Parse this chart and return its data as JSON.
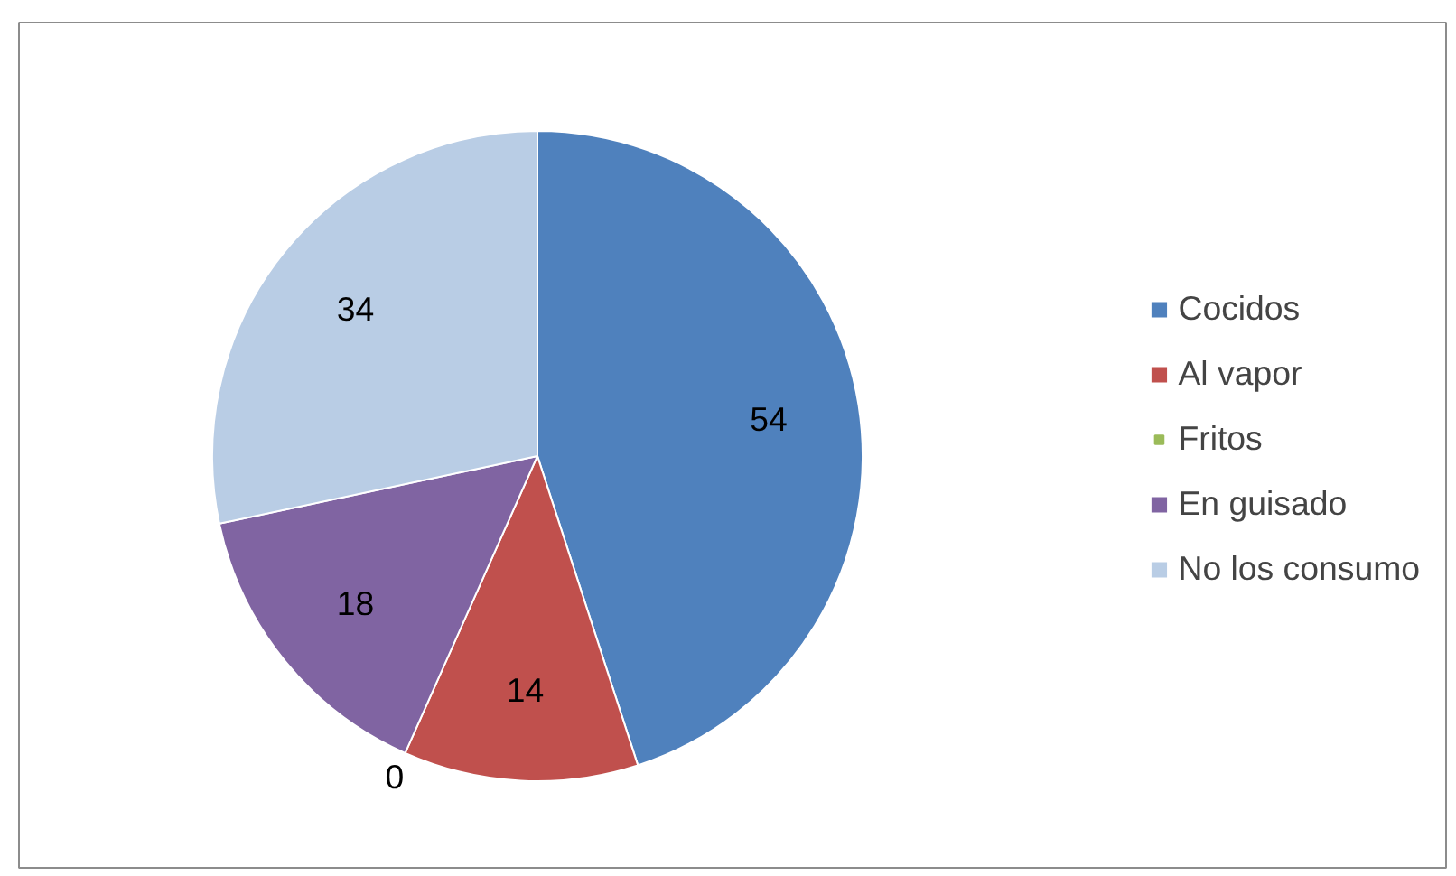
{
  "chart_data": {
    "type": "pie",
    "categories": [
      "Cocidos",
      "Al vapor",
      "Fritos",
      "En guisado",
      "No los consumo"
    ],
    "values": [
      54,
      14,
      0,
      18,
      34
    ],
    "colors": [
      "#4f81bd",
      "#c0504d",
      "#9bbb59",
      "#8064a2",
      "#b9cde5"
    ],
    "value_labels": [
      "54",
      "14",
      "0",
      "18",
      "34"
    ],
    "legend": "right"
  }
}
